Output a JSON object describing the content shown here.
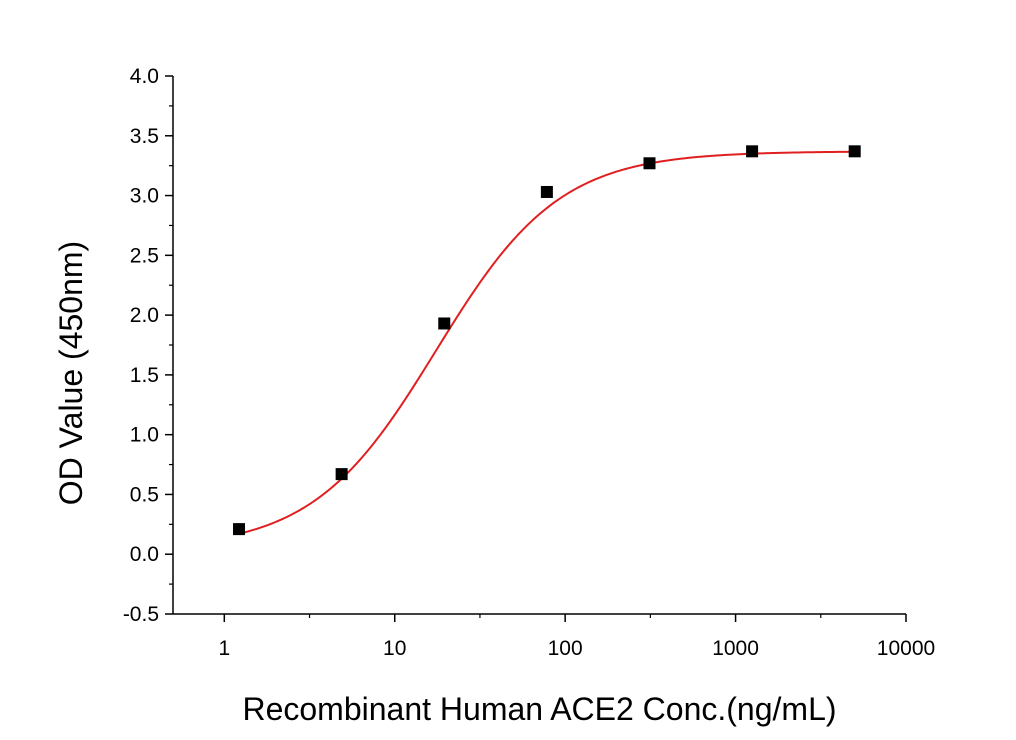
{
  "chart_data": {
    "type": "scatter",
    "xlabel": "Recombinant Human ACE2 Conc.(ng/mL)",
    "ylabel": "OD Value (450nm)",
    "x_scale": "log",
    "xlim": [
      0.5,
      10000
    ],
    "ylim": [
      -0.5,
      4.0
    ],
    "x_ticks": [
      {
        "value": 1,
        "label": "1"
      },
      {
        "value": 10,
        "label": "10"
      },
      {
        "value": 100,
        "label": "100"
      },
      {
        "value": 1000,
        "label": "1000"
      },
      {
        "value": 10000,
        "label": "10000"
      }
    ],
    "y_ticks": [
      {
        "value": -0.5,
        "label": "-0.5"
      },
      {
        "value": 0.0,
        "label": "0.0"
      },
      {
        "value": 0.5,
        "label": "0.5"
      },
      {
        "value": 1.0,
        "label": "1.0"
      },
      {
        "value": 1.5,
        "label": "1.5"
      },
      {
        "value": 2.0,
        "label": "2.0"
      },
      {
        "value": 2.5,
        "label": "2.5"
      },
      {
        "value": 3.0,
        "label": "3.0"
      },
      {
        "value": 3.5,
        "label": "3.5"
      },
      {
        "value": 4.0,
        "label": "4.0"
      }
    ],
    "grid": false,
    "series": [
      {
        "kind": "points",
        "marker": "square",
        "color": "#000000",
        "x": [
          1.22,
          4.88,
          19.53,
          78.13,
          312.5,
          1250,
          5000
        ],
        "y": [
          0.21,
          0.67,
          1.93,
          3.03,
          3.27,
          3.37,
          3.37
        ]
      },
      {
        "kind": "fitted-curve",
        "color": "#e02020",
        "model": "4PL",
        "bottom": 0.04,
        "top": 3.37,
        "ec50": 17.5,
        "hill": 1.2,
        "x_range": [
          1.22,
          5000
        ]
      }
    ]
  }
}
